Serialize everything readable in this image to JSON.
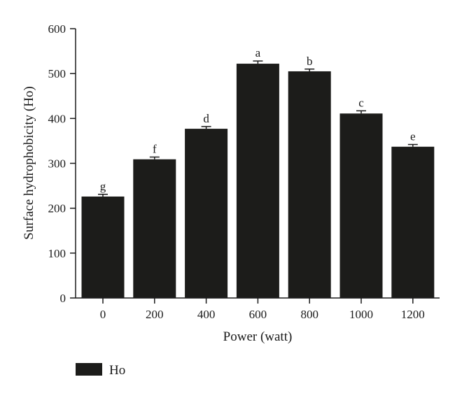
{
  "chart_data": {
    "type": "bar",
    "title": "",
    "xlabel": "Power (watt)",
    "ylabel": "Surface hydrophobicity (Ho)",
    "categories": [
      "0",
      "200",
      "400",
      "600",
      "800",
      "1000",
      "1200"
    ],
    "series": [
      {
        "name": "Ho",
        "values": [
          226,
          309,
          377,
          522,
          505,
          411,
          337
        ],
        "errors": [
          5,
          5,
          5,
          6,
          5,
          6,
          5
        ],
        "significance_labels": [
          "g",
          "f",
          "d",
          "a",
          "b",
          "c",
          "e"
        ]
      }
    ],
    "ylim": [
      0,
      600
    ],
    "yticks": [
      "0",
      "100",
      "200",
      "300",
      "400",
      "500",
      "600"
    ],
    "grid": false,
    "legend_position": "bottom-left",
    "bar_color": "#1c1c1a"
  }
}
